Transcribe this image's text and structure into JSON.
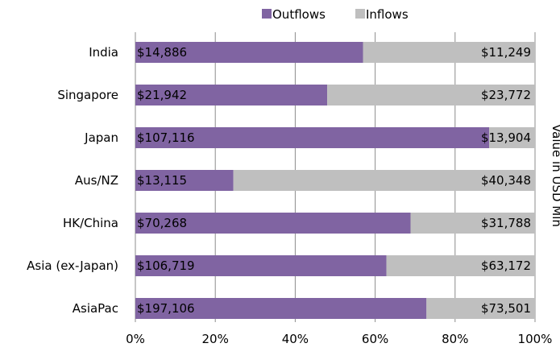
{
  "chart_data": {
    "type": "bar",
    "orientation": "horizontal",
    "stacked": "percent",
    "categories": [
      "India",
      "Singapore",
      "Japan",
      "Aus/NZ",
      "HK/China",
      "Asia (ex-Japan)",
      "AsiaPac"
    ],
    "series": [
      {
        "name": "Outflows",
        "color": "#8064a2",
        "values": [
          14886,
          21942,
          107116,
          13115,
          70268,
          106719,
          197106
        ],
        "labels": [
          "$14,886",
          "$21,942",
          "$107,116",
          "$13,115",
          "$70,268",
          "$106,719",
          "$197,106"
        ]
      },
      {
        "name": "Inflows",
        "color": "#bfbfbf",
        "values": [
          11249,
          23772,
          13904,
          40348,
          31788,
          63172,
          73501
        ],
        "labels": [
          "$11,249",
          "$23,772",
          "$13,904",
          "$40,348",
          "$31,788",
          "$63,172",
          "$73,501"
        ]
      }
    ],
    "x_ticks": [
      "0%",
      "20%",
      "40%",
      "60%",
      "80%",
      "100%"
    ],
    "xlim": [
      0,
      100
    ],
    "ylabel_right": "Value in USD Mln",
    "grid": "vertical",
    "legend_position": "top"
  }
}
